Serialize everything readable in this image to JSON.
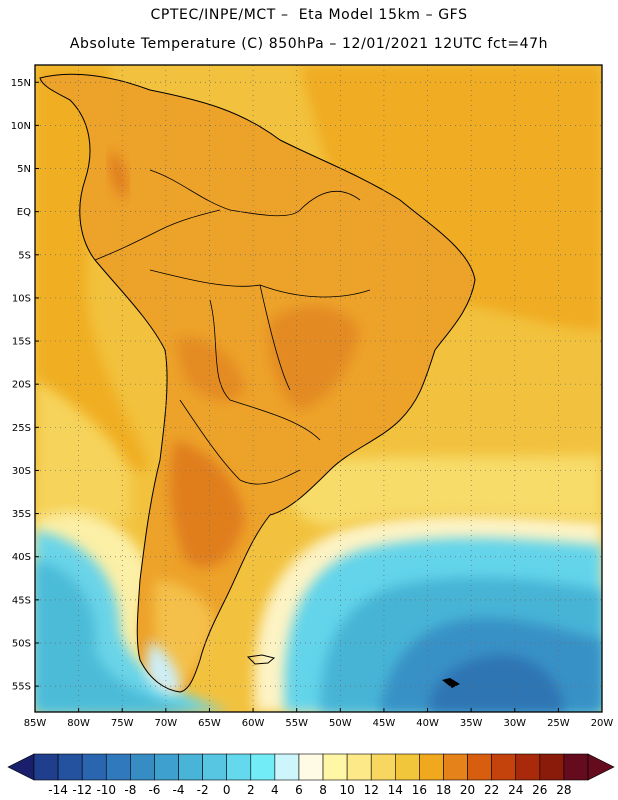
{
  "header": {
    "line1": "CPTEC/INPE/MCT –  Eta Model 15km – GFS",
    "line2": "Absolute Temperature (C) 850hPa – 12/01/2021 12UTC fct=47h"
  },
  "map": {
    "lat_labels": [
      "15N",
      "10N",
      "5N",
      "EQ",
      "5S",
      "10S",
      "15S",
      "20S",
      "25S",
      "30S",
      "35S",
      "40S",
      "45S",
      "50S",
      "55S"
    ],
    "lon_labels": [
      "85W",
      "80W",
      "75W",
      "70W",
      "65W",
      "60W",
      "55W",
      "50W",
      "45W",
      "40W",
      "35W",
      "30W",
      "25W",
      "20W"
    ],
    "lon_range": [
      -85,
      -20
    ],
    "lat_range": [
      -58,
      17
    ],
    "gridlines": "dotted",
    "background_ocean_color": "#f2be3c"
  },
  "colorbar": {
    "labels": [
      "-14",
      "-12",
      "-10",
      "-8",
      "-6",
      "-4",
      "-2",
      "0",
      "2",
      "4",
      "6",
      "8",
      "10",
      "12",
      "14",
      "16",
      "18",
      "20",
      "22",
      "24",
      "26",
      "28"
    ],
    "colors": [
      "#1f3f8c",
      "#24529e",
      "#2a66b0",
      "#3079bc",
      "#378cc4",
      "#3ea0ce",
      "#49b4d8",
      "#56c6e3",
      "#64d8ec",
      "#72ecf6",
      "#ccf6fb",
      "#fffbe4",
      "#fff6a6",
      "#fde988",
      "#f8d760",
      "#f2c63a",
      "#f0a81e",
      "#e5821a",
      "#d85e0f",
      "#c4430d",
      "#a82a0a",
      "#8a1a0a",
      "#650b1e"
    ],
    "left_arrow_color": "#1a1f6c",
    "right_arrow_color": "#650b1e"
  }
}
